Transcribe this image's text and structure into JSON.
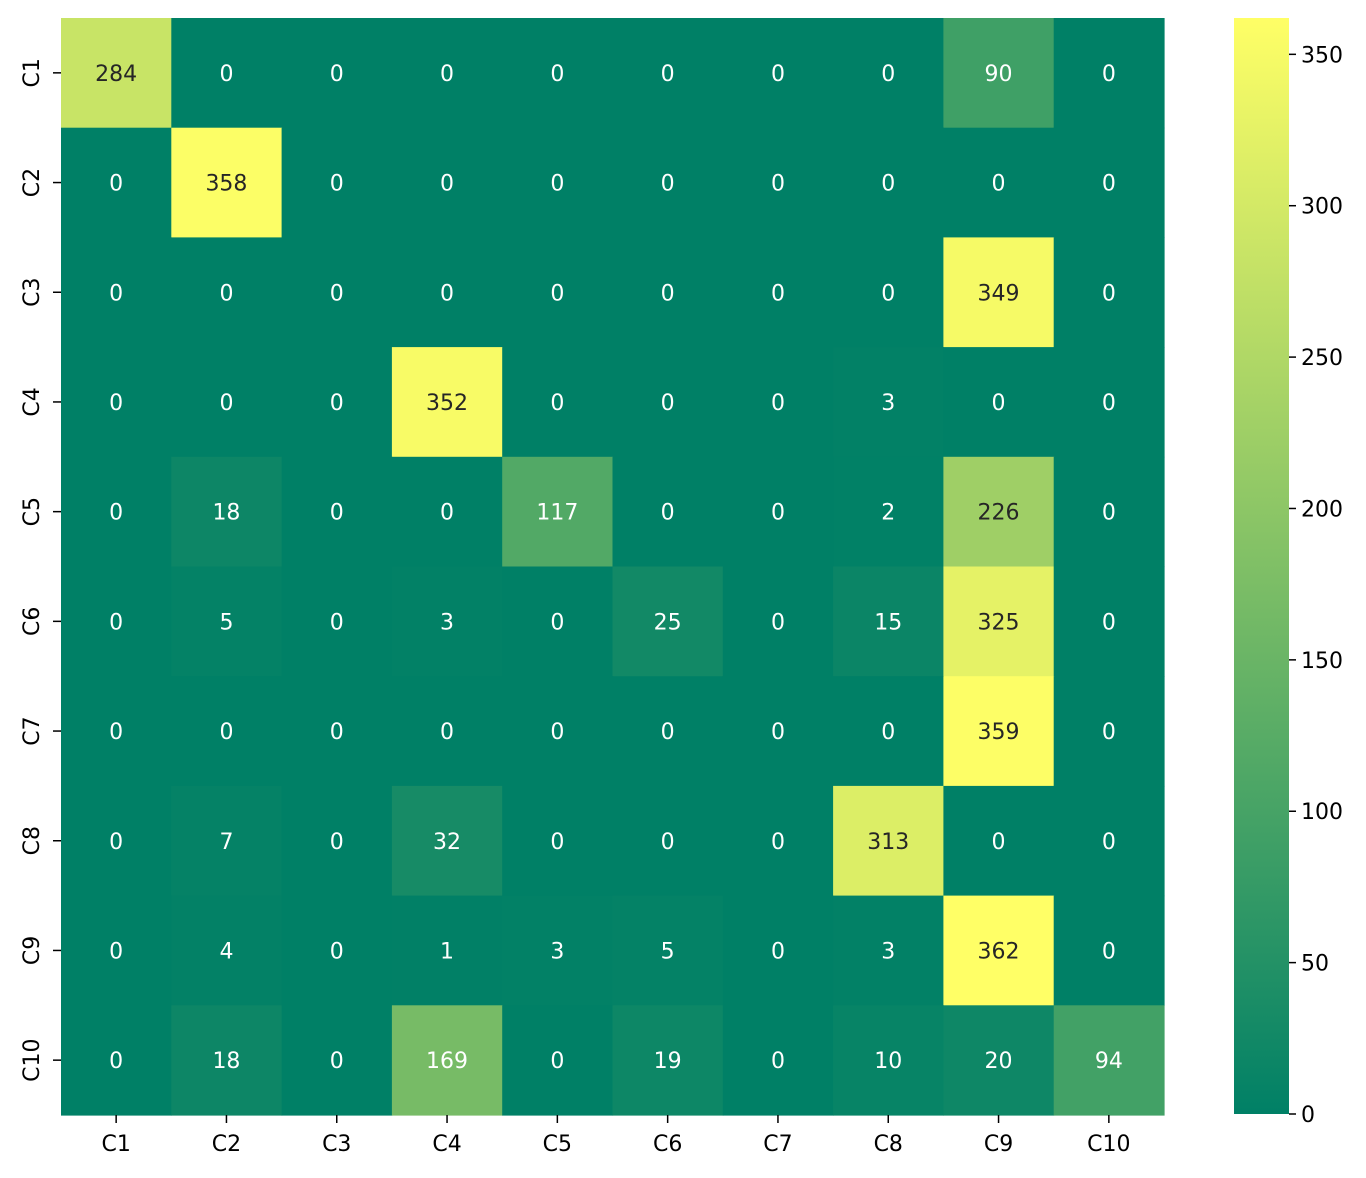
{
  "chart_data": {
    "type": "heatmap",
    "title": "",
    "xlabel": "",
    "ylabel": "",
    "x_categories": [
      "C1",
      "C2",
      "C3",
      "C4",
      "C5",
      "C6",
      "C7",
      "C8",
      "C9",
      "C10"
    ],
    "y_categories": [
      "C1",
      "C2",
      "C3",
      "C4",
      "C5",
      "C6",
      "C7",
      "C8",
      "C9",
      "C10"
    ],
    "values": [
      [
        284,
        0,
        0,
        0,
        0,
        0,
        0,
        0,
        90,
        0
      ],
      [
        0,
        358,
        0,
        0,
        0,
        0,
        0,
        0,
        0,
        0
      ],
      [
        0,
        0,
        0,
        0,
        0,
        0,
        0,
        0,
        349,
        0
      ],
      [
        0,
        0,
        0,
        352,
        0,
        0,
        0,
        3,
        0,
        0
      ],
      [
        0,
        18,
        0,
        0,
        117,
        0,
        0,
        2,
        226,
        0
      ],
      [
        0,
        5,
        0,
        3,
        0,
        25,
        0,
        15,
        325,
        0
      ],
      [
        0,
        0,
        0,
        0,
        0,
        0,
        0,
        0,
        359,
        0
      ],
      [
        0,
        7,
        0,
        32,
        0,
        0,
        0,
        313,
        0,
        0
      ],
      [
        0,
        4,
        0,
        1,
        3,
        5,
        0,
        3,
        362,
        0
      ],
      [
        0,
        18,
        0,
        169,
        0,
        19,
        0,
        10,
        20,
        94
      ]
    ],
    "colormap": "summer",
    "colorbar": {
      "range": [
        0,
        362
      ],
      "ticks": [
        0,
        50,
        100,
        150,
        200,
        250,
        300,
        350
      ]
    },
    "colors": {
      "low": "#008066",
      "high": "#ffff66",
      "annotation_dark": "#262626",
      "annotation_light": "#ffffff"
    },
    "grid": false,
    "legend": "colorbar-right"
  }
}
